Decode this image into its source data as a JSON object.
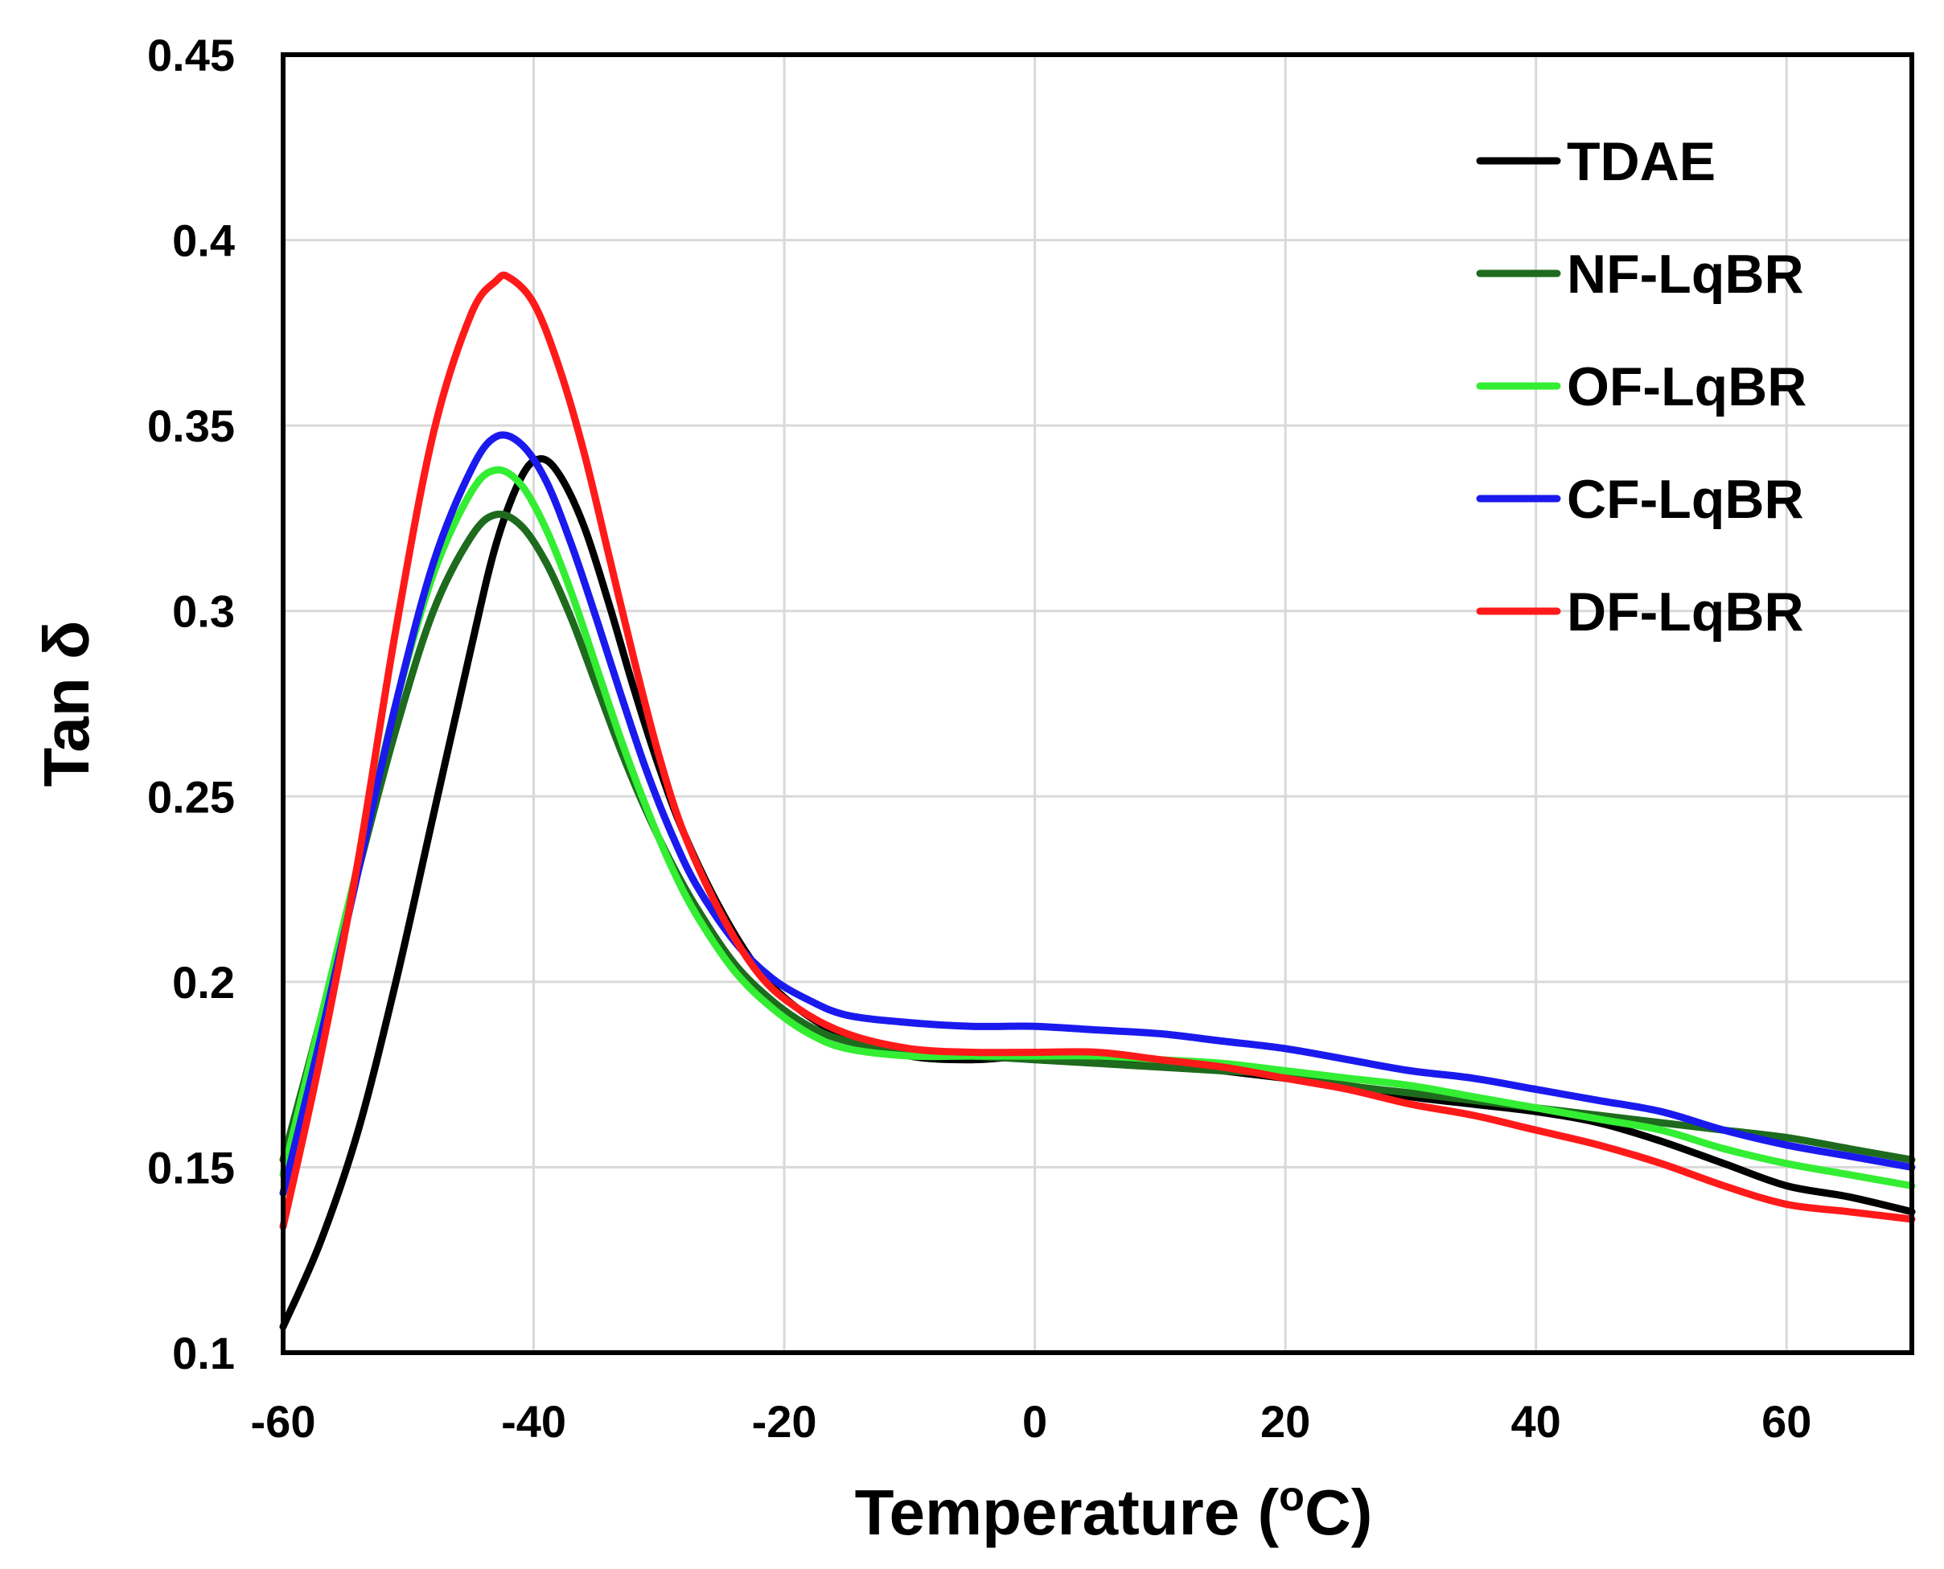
{
  "chart_data": {
    "type": "line",
    "xlabel": "Temperature (",
    "xlabel_sup": "o",
    "xlabel_tail": "C)",
    "ylabel": "Tan δ",
    "xlim": [
      -60,
      70
    ],
    "ylim": [
      0.1,
      0.45
    ],
    "x_ticks": [
      -60,
      -40,
      -20,
      0,
      20,
      40,
      60
    ],
    "x_tick_labels": [
      "-60",
      "-40",
      "-20",
      "0",
      "20",
      "40",
      "60"
    ],
    "y_ticks": [
      0.1,
      0.15,
      0.2,
      0.25,
      0.3,
      0.35,
      0.4,
      0.45
    ],
    "y_tick_labels": [
      "0.1",
      "0.15",
      "0.2",
      "0.25",
      "0.3",
      "0.35",
      "0.4",
      "0.45"
    ],
    "grid": true,
    "legend_position": "top-right",
    "series": [
      {
        "name": "TDAE",
        "color": "#000000",
        "x": [
          -60,
          -57,
          -54,
          -51,
          -48,
          -45,
          -43,
          -41,
          -39.5,
          -38,
          -36,
          -34,
          -32,
          -30,
          -28,
          -25,
          -22,
          -19,
          -15,
          -10,
          -5,
          0,
          5,
          10,
          15,
          20,
          25,
          30,
          35,
          40,
          45,
          50,
          55,
          60,
          65,
          70
        ],
        "y": [
          0.107,
          0.13,
          0.16,
          0.2,
          0.245,
          0.29,
          0.318,
          0.336,
          0.341,
          0.337,
          0.323,
          0.302,
          0.279,
          0.258,
          0.24,
          0.219,
          0.203,
          0.193,
          0.185,
          0.18,
          0.179,
          0.18,
          0.179,
          0.178,
          0.176,
          0.174,
          0.172,
          0.169,
          0.167,
          0.165,
          0.162,
          0.157,
          0.151,
          0.145,
          0.142,
          0.138
        ]
      },
      {
        "name": "NF-LqBR",
        "color": "#1e6b1e",
        "x": [
          -60,
          -57,
          -54,
          -51,
          -48,
          -45,
          -43,
          -41,
          -39,
          -37,
          -35,
          -33,
          -31,
          -29,
          -27,
          -24,
          -21,
          -18,
          -15,
          -10,
          -5,
          0,
          5,
          10,
          15,
          20,
          25,
          30,
          35,
          40,
          45,
          50,
          55,
          60,
          65,
          70
        ],
        "y": [
          0.152,
          0.19,
          0.23,
          0.268,
          0.3,
          0.32,
          0.326,
          0.323,
          0.313,
          0.298,
          0.28,
          0.262,
          0.246,
          0.232,
          0.22,
          0.205,
          0.195,
          0.188,
          0.184,
          0.181,
          0.18,
          0.179,
          0.178,
          0.177,
          0.176,
          0.175,
          0.172,
          0.17,
          0.168,
          0.166,
          0.164,
          0.162,
          0.16,
          0.158,
          0.155,
          0.152
        ]
      },
      {
        "name": "OF-LqBR",
        "color": "#33ee33",
        "x": [
          -60,
          -57,
          -54,
          -51,
          -48,
          -45,
          -43,
          -41,
          -39,
          -37,
          -35,
          -33,
          -31,
          -29,
          -27,
          -24,
          -21,
          -18,
          -15,
          -10,
          -5,
          0,
          5,
          10,
          15,
          20,
          25,
          30,
          35,
          40,
          45,
          50,
          55,
          60,
          65,
          70
        ],
        "y": [
          0.148,
          0.19,
          0.232,
          0.275,
          0.31,
          0.332,
          0.338,
          0.334,
          0.322,
          0.305,
          0.285,
          0.265,
          0.247,
          0.231,
          0.218,
          0.203,
          0.193,
          0.186,
          0.182,
          0.18,
          0.18,
          0.18,
          0.18,
          0.179,
          0.178,
          0.176,
          0.174,
          0.172,
          0.169,
          0.166,
          0.163,
          0.16,
          0.155,
          0.151,
          0.148,
          0.145
        ]
      },
      {
        "name": "CF-LqBR",
        "color": "#1a1aee",
        "x": [
          -60,
          -57,
          -54,
          -51,
          -48,
          -45,
          -43,
          -41,
          -39,
          -37,
          -35,
          -33,
          -31,
          -29,
          -27,
          -24,
          -21,
          -18,
          -15,
          -10,
          -5,
          0,
          5,
          10,
          15,
          20,
          25,
          30,
          35,
          40,
          45,
          50,
          55,
          60,
          65,
          70
        ],
        "y": [
          0.143,
          0.185,
          0.23,
          0.275,
          0.313,
          0.338,
          0.347,
          0.345,
          0.335,
          0.318,
          0.298,
          0.277,
          0.257,
          0.24,
          0.226,
          0.211,
          0.201,
          0.195,
          0.191,
          0.189,
          0.188,
          0.188,
          0.187,
          0.186,
          0.184,
          0.182,
          0.179,
          0.176,
          0.174,
          0.171,
          0.168,
          0.165,
          0.16,
          0.156,
          0.153,
          0.15
        ]
      },
      {
        "name": "DF-LqBR",
        "color": "#ff1a1a",
        "x": [
          -60,
          -57,
          -54,
          -51,
          -48,
          -45,
          -43,
          -42,
          -40,
          -38,
          -36,
          -34,
          -32,
          -30,
          -28,
          -25,
          -22,
          -19,
          -15,
          -10,
          -5,
          0,
          5,
          10,
          15,
          20,
          25,
          30,
          35,
          40,
          45,
          50,
          55,
          60,
          65,
          70
        ],
        "y": [
          0.134,
          0.18,
          0.233,
          0.295,
          0.348,
          0.38,
          0.389,
          0.39,
          0.383,
          0.366,
          0.343,
          0.315,
          0.287,
          0.261,
          0.24,
          0.218,
          0.202,
          0.193,
          0.186,
          0.182,
          0.181,
          0.181,
          0.181,
          0.179,
          0.177,
          0.174,
          0.171,
          0.167,
          0.164,
          0.16,
          0.156,
          0.151,
          0.145,
          0.14,
          0.138,
          0.136
        ]
      }
    ]
  }
}
